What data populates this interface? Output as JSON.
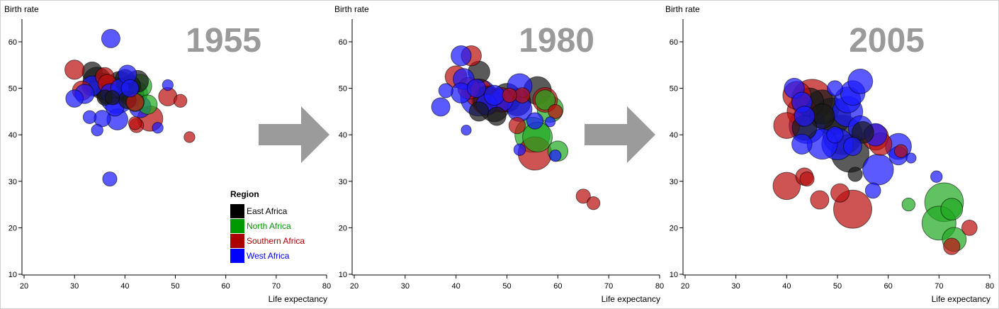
{
  "chart_data": [
    {
      "type": "scatter",
      "title": "1955",
      "xlabel": "Life expectancy",
      "ylabel": "Birth rate",
      "xlim": [
        20,
        80
      ],
      "ylim": [
        10,
        65
      ],
      "xticks": [
        "20",
        "30",
        "40",
        "50",
        "60",
        "70",
        "80"
      ],
      "yticks": [
        "10",
        "20",
        "30",
        "40",
        "50",
        "60"
      ],
      "series": [
        {
          "name": "East Africa",
          "points": [
            {
              "x": 33.5,
              "y": 53.5,
              "s": 1.2
            },
            {
              "x": 34.5,
              "y": 51.5,
              "s": 2.4
            },
            {
              "x": 35.5,
              "y": 50.5,
              "s": 2.0
            },
            {
              "x": 36.5,
              "y": 49.0,
              "s": 1.4
            },
            {
              "x": 38.0,
              "y": 48.5,
              "s": 1.0
            },
            {
              "x": 39.0,
              "y": 51.0,
              "s": 1.8
            },
            {
              "x": 40.0,
              "y": 52.0,
              "s": 1.1
            },
            {
              "x": 41.0,
              "y": 50.5,
              "s": 1.3
            },
            {
              "x": 42.5,
              "y": 51.5,
              "s": 1.4
            },
            {
              "x": 40.5,
              "y": 47.5,
              "s": 0.9
            },
            {
              "x": 41.5,
              "y": 48.5,
              "s": 1.6
            },
            {
              "x": 37.5,
              "y": 48.0,
              "s": 0.6
            },
            {
              "x": 36.0,
              "y": 48.0,
              "s": 0.7
            }
          ]
        },
        {
          "name": "North Africa",
          "points": [
            {
              "x": 43.0,
              "y": 50.5,
              "s": 1.6
            },
            {
              "x": 42.0,
              "y": 49.0,
              "s": 1.8
            },
            {
              "x": 44.5,
              "y": 46.5,
              "s": 1.1
            },
            {
              "x": 42.0,
              "y": 47.0,
              "s": 1.0
            }
          ]
        },
        {
          "name": "Southern Africa",
          "points": [
            {
              "x": 30.0,
              "y": 54.0,
              "s": 1.1
            },
            {
              "x": 31.5,
              "y": 49.5,
              "s": 1.1
            },
            {
              "x": 36.0,
              "y": 52.5,
              "s": 1.0
            },
            {
              "x": 36.5,
              "y": 51.0,
              "s": 1.0
            },
            {
              "x": 42.0,
              "y": 47.0,
              "s": 0.9
            },
            {
              "x": 45.0,
              "y": 43.5,
              "s": 1.9
            },
            {
              "x": 48.5,
              "y": 48.2,
              "s": 1.0
            },
            {
              "x": 51.0,
              "y": 47.3,
              "s": 0.5
            },
            {
              "x": 52.8,
              "y": 39.5,
              "s": 0.35
            },
            {
              "x": 42.0,
              "y": 42.5,
              "s": 0.5
            },
            {
              "x": 42.3,
              "y": 42.0,
              "s": 0.6
            }
          ]
        },
        {
          "name": "West Africa",
          "points": [
            {
              "x": 37.2,
              "y": 60.7,
              "s": 1.0
            },
            {
              "x": 30.0,
              "y": 47.8,
              "s": 0.9
            },
            {
              "x": 32.0,
              "y": 48.8,
              "s": 1.1
            },
            {
              "x": 33.0,
              "y": 43.8,
              "s": 0.5
            },
            {
              "x": 33.5,
              "y": 50.5,
              "s": 1.2
            },
            {
              "x": 34.5,
              "y": 41.0,
              "s": 0.4
            },
            {
              "x": 35.5,
              "y": 43.5,
              "s": 0.8
            },
            {
              "x": 37.0,
              "y": 49.0,
              "s": 1.0
            },
            {
              "x": 38.5,
              "y": 48.5,
              "s": 3.8
            },
            {
              "x": 38.0,
              "y": 46.0,
              "s": 1.0
            },
            {
              "x": 39.0,
              "y": 50.0,
              "s": 1.0
            },
            {
              "x": 38.5,
              "y": 43.3,
              "s": 1.3
            },
            {
              "x": 40.5,
              "y": 53.0,
              "s": 1.0
            },
            {
              "x": 41.0,
              "y": 50.0,
              "s": 0.9
            },
            {
              "x": 43.0,
              "y": 46.0,
              "s": 1.4
            },
            {
              "x": 46.5,
              "y": 41.5,
              "s": 0.35
            },
            {
              "x": 48.5,
              "y": 50.7,
              "s": 0.35
            },
            {
              "x": 37.0,
              "y": 30.5,
              "s": 0.6
            }
          ]
        }
      ]
    },
    {
      "type": "scatter",
      "title": "1980",
      "xlabel": "Life expectancy",
      "ylabel": "Birth rate",
      "xlim": [
        20,
        80
      ],
      "ylim": [
        10,
        65
      ],
      "xticks": [
        "20",
        "30",
        "40",
        "50",
        "60",
        "70",
        "80"
      ],
      "yticks": [
        "10",
        "20",
        "30",
        "40",
        "50",
        "60"
      ],
      "series": [
        {
          "name": "East Africa",
          "points": [
            {
              "x": 44.5,
              "y": 53.5,
              "s": 1.4
            },
            {
              "x": 46.0,
              "y": 47.5,
              "s": 2.2
            },
            {
              "x": 47.5,
              "y": 46.0,
              "s": 2.6
            },
            {
              "x": 50.0,
              "y": 48.0,
              "s": 2.4
            },
            {
              "x": 52.0,
              "y": 47.0,
              "s": 2.2
            },
            {
              "x": 56.0,
              "y": 49.5,
              "s": 2.3
            },
            {
              "x": 44.5,
              "y": 45.0,
              "s": 1.1
            },
            {
              "x": 48.0,
              "y": 44.0,
              "s": 1.0
            }
          ]
        },
        {
          "name": "North Africa",
          "points": [
            {
              "x": 55.0,
              "y": 40.0,
              "s": 3.6
            },
            {
              "x": 56.0,
              "y": 39.5,
              "s": 2.6
            },
            {
              "x": 58.5,
              "y": 45.5,
              "s": 2.0
            },
            {
              "x": 57.5,
              "y": 47.5,
              "s": 1.2
            },
            {
              "x": 60.0,
              "y": 36.5,
              "s": 1.2
            }
          ]
        },
        {
          "name": "Southern Africa",
          "points": [
            {
              "x": 43.0,
              "y": 57.0,
              "s": 1.2
            },
            {
              "x": 40.0,
              "y": 52.5,
              "s": 1.4
            },
            {
              "x": 42.5,
              "y": 50.0,
              "s": 1.4
            },
            {
              "x": 44.5,
              "y": 49.0,
              "s": 2.3
            },
            {
              "x": 46.0,
              "y": 47.5,
              "s": 2.6
            },
            {
              "x": 49.0,
              "y": 47.5,
              "s": 1.8
            },
            {
              "x": 50.5,
              "y": 48.5,
              "s": 0.6
            },
            {
              "x": 53.0,
              "y": 48.5,
              "s": 0.7
            },
            {
              "x": 52.0,
              "y": 42.0,
              "s": 0.8
            },
            {
              "x": 57.5,
              "y": 47.5,
              "s": 1.8
            },
            {
              "x": 59.5,
              "y": 45.0,
              "s": 0.6
            },
            {
              "x": 55.5,
              "y": 36.0,
              "s": 3.3
            },
            {
              "x": 65.0,
              "y": 26.8,
              "s": 0.6
            },
            {
              "x": 67.0,
              "y": 25.3,
              "s": 0.5
            }
          ]
        },
        {
          "name": "West Africa",
          "points": [
            {
              "x": 37.0,
              "y": 46.0,
              "s": 1.0
            },
            {
              "x": 38.0,
              "y": 49.5,
              "s": 0.6
            },
            {
              "x": 41.0,
              "y": 57.0,
              "s": 1.2
            },
            {
              "x": 41.5,
              "y": 52.0,
              "s": 1.3
            },
            {
              "x": 41.0,
              "y": 49.0,
              "s": 1.2
            },
            {
              "x": 44.0,
              "y": 50.0,
              "s": 1.0
            },
            {
              "x": 44.5,
              "y": 48.0,
              "s": 4.0
            },
            {
              "x": 46.0,
              "y": 46.5,
              "s": 1.3
            },
            {
              "x": 47.5,
              "y": 48.5,
              "s": 1.2
            },
            {
              "x": 49.0,
              "y": 47.5,
              "s": 1.5
            },
            {
              "x": 52.5,
              "y": 50.5,
              "s": 1.8
            },
            {
              "x": 52.5,
              "y": 45.5,
              "s": 1.8
            },
            {
              "x": 55.5,
              "y": 43.0,
              "s": 0.8
            },
            {
              "x": 52.5,
              "y": 36.8,
              "s": 0.4
            },
            {
              "x": 59.5,
              "y": 35.5,
              "s": 0.4
            },
            {
              "x": 58.5,
              "y": 42.8,
              "s": 0.3
            },
            {
              "x": 42.0,
              "y": 41.0,
              "s": 0.3
            }
          ]
        }
      ]
    },
    {
      "type": "scatter",
      "title": "2005",
      "xlabel": "Life expectancy",
      "ylabel": "Birth rate",
      "xlim": [
        20,
        80
      ],
      "ylim": [
        10,
        65
      ],
      "xticks": [
        "20",
        "30",
        "40",
        "50",
        "60",
        "70",
        "80"
      ],
      "yticks": [
        "10",
        "20",
        "30",
        "40",
        "50",
        "60"
      ],
      "series": [
        {
          "name": "East Africa",
          "points": [
            {
              "x": 44.5,
              "y": 47.0,
              "s": 2.4
            },
            {
              "x": 47.0,
              "y": 46.0,
              "s": 3.4
            },
            {
              "x": 49.0,
              "y": 44.0,
              "s": 4.0
            },
            {
              "x": 51.0,
              "y": 40.0,
              "s": 4.6
            },
            {
              "x": 52.5,
              "y": 36.0,
              "s": 4.2
            },
            {
              "x": 55.0,
              "y": 40.5,
              "s": 1.4
            },
            {
              "x": 47.0,
              "y": 44.0,
              "s": 1.8
            },
            {
              "x": 43.5,
              "y": 41.5,
              "s": 1.8
            },
            {
              "x": 53.5,
              "y": 31.5,
              "s": 0.6
            }
          ]
        },
        {
          "name": "North Africa",
          "points": [
            {
              "x": 71.0,
              "y": 25.5,
              "s": 4.4
            },
            {
              "x": 70.0,
              "y": 21.0,
              "s": 3.4
            },
            {
              "x": 72.5,
              "y": 24.0,
              "s": 1.4
            },
            {
              "x": 73.0,
              "y": 17.5,
              "s": 1.7
            },
            {
              "x": 64.0,
              "y": 25.0,
              "s": 0.5
            }
          ]
        },
        {
          "name": "Southern Africa",
          "points": [
            {
              "x": 45.0,
              "y": 47.5,
              "s": 5.0
            },
            {
              "x": 42.0,
              "y": 48.5,
              "s": 2.3
            },
            {
              "x": 43.0,
              "y": 45.0,
              "s": 2.6
            },
            {
              "x": 40.0,
              "y": 42.0,
              "s": 2.0
            },
            {
              "x": 40.0,
              "y": 29.0,
              "s": 2.2
            },
            {
              "x": 43.5,
              "y": 31.0,
              "s": 0.9
            },
            {
              "x": 44.0,
              "y": 30.5,
              "s": 0.6
            },
            {
              "x": 46.5,
              "y": 26.0,
              "s": 1.0
            },
            {
              "x": 50.5,
              "y": 27.5,
              "s": 1.0
            },
            {
              "x": 53.0,
              "y": 24.0,
              "s": 4.3
            },
            {
              "x": 57.5,
              "y": 39.5,
              "s": 2.0
            },
            {
              "x": 58.5,
              "y": 38.0,
              "s": 1.5
            },
            {
              "x": 62.5,
              "y": 36.5,
              "s": 0.5
            },
            {
              "x": 72.5,
              "y": 16.0,
              "s": 0.8
            },
            {
              "x": 76.0,
              "y": 20.0,
              "s": 0.7
            }
          ]
        },
        {
          "name": "West Africa",
          "points": [
            {
              "x": 41.5,
              "y": 50.0,
              "s": 1.2
            },
            {
              "x": 43.0,
              "y": 47.0,
              "s": 1.2
            },
            {
              "x": 43.5,
              "y": 44.0,
              "s": 1.2
            },
            {
              "x": 44.0,
              "y": 42.0,
              "s": 3.8
            },
            {
              "x": 47.0,
              "y": 38.0,
              "s": 2.7
            },
            {
              "x": 50.0,
              "y": 38.0,
              "s": 2.9
            },
            {
              "x": 52.0,
              "y": 45.0,
              "s": 2.7
            },
            {
              "x": 52.0,
              "y": 47.5,
              "s": 2.0
            },
            {
              "x": 53.0,
              "y": 49.0,
              "s": 1.8
            },
            {
              "x": 54.5,
              "y": 51.5,
              "s": 1.8
            },
            {
              "x": 54.5,
              "y": 41.5,
              "s": 1.7
            },
            {
              "x": 57.5,
              "y": 40.0,
              "s": 1.5
            },
            {
              "x": 58.0,
              "y": 32.5,
              "s": 2.8
            },
            {
              "x": 62.0,
              "y": 37.5,
              "s": 2.0
            },
            {
              "x": 62.0,
              "y": 35.5,
              "s": 1.0
            },
            {
              "x": 43.0,
              "y": 38.0,
              "s": 1.2
            },
            {
              "x": 53.0,
              "y": 37.5,
              "s": 1.0
            },
            {
              "x": 49.5,
              "y": 40.0,
              "s": 0.8
            },
            {
              "x": 49.5,
              "y": 50.0,
              "s": 0.7
            },
            {
              "x": 57.0,
              "y": 28.0,
              "s": 0.7
            },
            {
              "x": 69.5,
              "y": 31.0,
              "s": 0.4
            },
            {
              "x": 64.5,
              "y": 35.0,
              "s": 0.3
            }
          ]
        }
      ]
    }
  ],
  "legend": {
    "title": "Region",
    "placement": "bottom-right of first panel",
    "items": [
      {
        "label": "East Africa",
        "color": "#000000"
      },
      {
        "label": "North Africa",
        "color": "#009900"
      },
      {
        "label": "Southern Africa",
        "color": "#aa0000"
      },
      {
        "label": "West Africa",
        "color": "#0000ff"
      }
    ]
  },
  "colors": {
    "East Africa": "#1a1a1a",
    "North Africa": "#22aa22",
    "Southern Africa": "#bb1111",
    "West Africa": "#1a1aff",
    "year": "#9a9a9a",
    "arrow": "#9b9b9b"
  }
}
